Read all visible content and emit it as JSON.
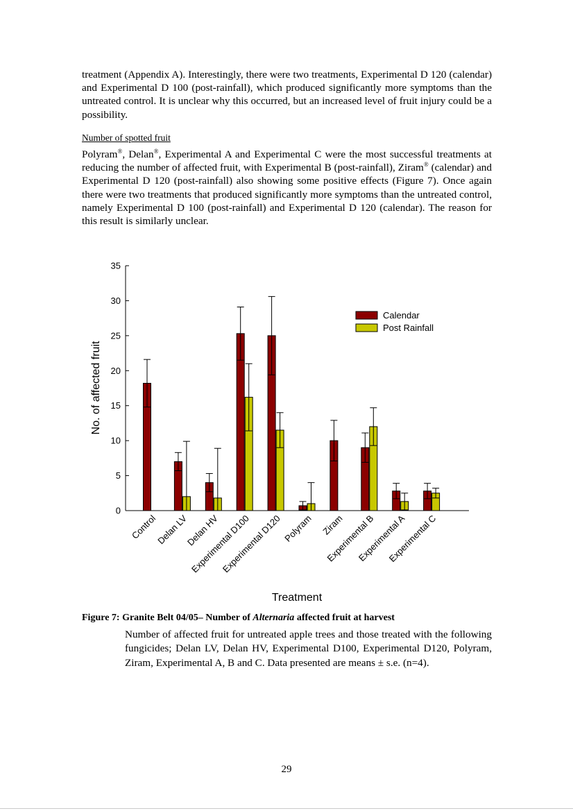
{
  "paragraph1": "treatment (Appendix A).  Interestingly, there were two treatments, Experimental D 120 (calendar) and Experimental D 100 (post-rainfall), which produced significantly more symptoms than the untreated control.  It is unclear why this occurred, but an increased level of fruit injury could be a possibility.",
  "section_heading": "Number of spotted fruit",
  "paragraph2": {
    "polyram": "Polyram",
    "sep1": ", ",
    "delan": "Delan",
    "part_a": ", Experimental A and Experimental C were the most successful treatments at reducing the number of affected fruit, with Experimental B (post-rainfall), ",
    "ziram": "Ziram",
    "part_b": " (calendar) and Experimental D 120 (post-rainfall) also showing some positive effects (Figure 7).  Once again there were two treatments that produced significantly more symptoms than the untreated control, namely Experimental D 100 (post-rainfall) and Experimental D 120 (calendar).  The reason for this result is similarly unclear.",
    "reg_mark": "®"
  },
  "chart_data": {
    "type": "bar",
    "title": "",
    "xlabel": "Treatment",
    "ylabel": "No. of affected fruit",
    "ylim": [
      0,
      35
    ],
    "yticks": [
      0,
      5,
      10,
      15,
      20,
      25,
      30,
      35
    ],
    "categories": [
      "Control",
      "Delan LV",
      "Delan HV",
      "Experimental D100",
      "Experimental D120",
      "Polyram",
      "Ziram",
      "Experimental B",
      "Experimental A",
      "Experimental C"
    ],
    "series": [
      {
        "name": "Calendar",
        "color": "#8b0000",
        "values": [
          18.2,
          7.0,
          4.0,
          25.3,
          25.0,
          0.7,
          10.0,
          9.0,
          2.8,
          2.8
        ],
        "error": [
          3.4,
          1.3,
          1.3,
          3.8,
          5.6,
          0.6,
          2.9,
          2.1,
          1.1,
          1.1
        ]
      },
      {
        "name": "Post Rainfall",
        "color": "#c8c800",
        "values": [
          null,
          2.0,
          1.8,
          16.2,
          11.5,
          1.0,
          null,
          12.0,
          1.3,
          2.5
        ],
        "error": [
          null,
          7.9,
          7.1,
          4.8,
          2.5,
          3.0,
          null,
          2.7,
          1.2,
          0.7
        ]
      }
    ],
    "legend_position": "top-right",
    "grid": false
  },
  "caption": {
    "label": "Figure 7:  Granite Belt 04/05– Number of ",
    "italic": "Alternaria",
    "rest": " affected fruit at harvest",
    "body": "Number of affected fruit for untreated apple trees and those treated with the following fungicides; Delan LV, Delan HV, Experimental D100, Experimental D120, Polyram, Ziram, Experimental A, B and C.  Data presented are means ± s.e. (n=4)."
  },
  "page_number": "29"
}
